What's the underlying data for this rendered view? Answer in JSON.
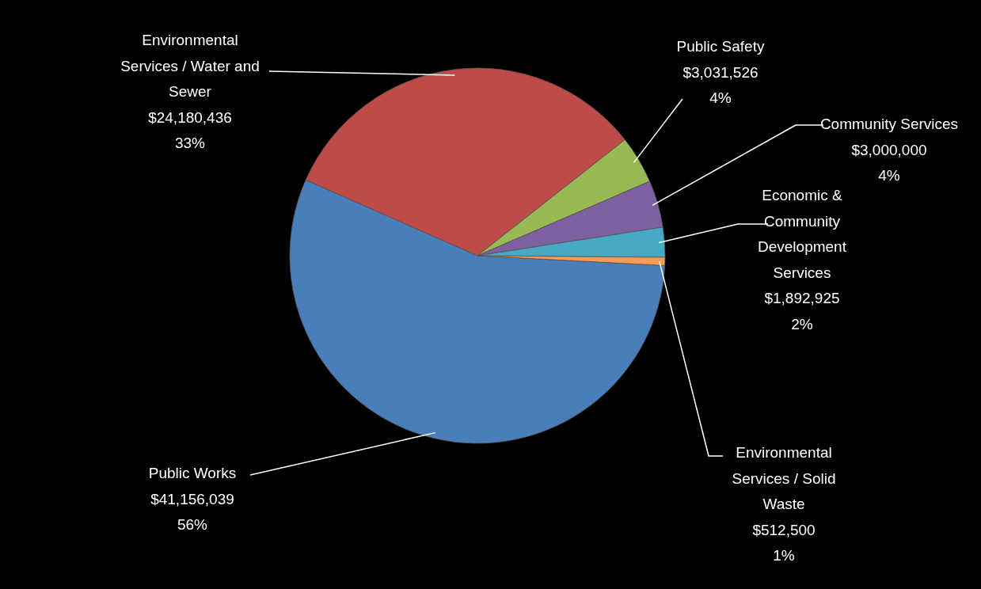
{
  "chart_data": {
    "type": "pie",
    "categories": [
      "Public Works",
      "Environmental Services / Water and Sewer",
      "Public Safety",
      "Community Services",
      "Economic & Community Development Services",
      "Environmental Services / Solid Waste"
    ],
    "values": [
      41156039,
      24180436,
      3031526,
      3000000,
      1892925,
      512500
    ],
    "value_labels": [
      "$41,156,039\n56%",
      "$24,180,436\n33%",
      "$3,031,526\n4%",
      "$3,000,000\n4%",
      "$1,892,925\n2%",
      "$512,500\n1%"
    ],
    "colors": [
      "#4a7ebb",
      "#be4b48",
      "#98b954",
      "#7d60a0",
      "#46aac5",
      "#f59d56"
    ],
    "legend": false
  }
}
